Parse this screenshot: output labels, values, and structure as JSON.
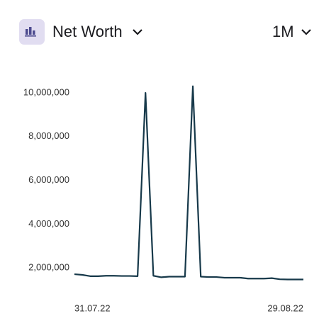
{
  "header": {
    "title": "Net Worth",
    "period": "1M"
  },
  "chart_data": {
    "type": "line",
    "categories": [
      "31.07.22",
      null,
      null,
      null,
      null,
      null,
      null,
      null,
      null,
      null,
      null,
      null,
      null,
      null,
      null,
      null,
      null,
      null,
      null,
      null,
      null,
      null,
      null,
      null,
      null,
      null,
      null,
      null,
      null,
      "29.08.22"
    ],
    "series": [
      {
        "name": "Net Worth",
        "color": "#17394a",
        "values": [
          1710000,
          1680000,
          1620000,
          1620000,
          1640000,
          1640000,
          1630000,
          1630000,
          1620000,
          10000000,
          1640000,
          1570000,
          1600000,
          1600000,
          1600000,
          10300000,
          1600000,
          1580000,
          1580000,
          1550000,
          1550000,
          1550000,
          1510000,
          1510000,
          1510000,
          1530000,
          1480000,
          1470000,
          1470000,
          1470000
        ]
      }
    ],
    "ylim": [
      1000000,
      10500000
    ],
    "yticks": [
      {
        "value": 2000000,
        "label": "2,000,000"
      },
      {
        "value": 4000000,
        "label": "4,000,000"
      },
      {
        "value": 6000000,
        "label": "6,000,000"
      },
      {
        "value": 8000000,
        "label": "8,000,000"
      },
      {
        "value": 10000000,
        "label": "10,000,000"
      }
    ],
    "grid": false
  }
}
